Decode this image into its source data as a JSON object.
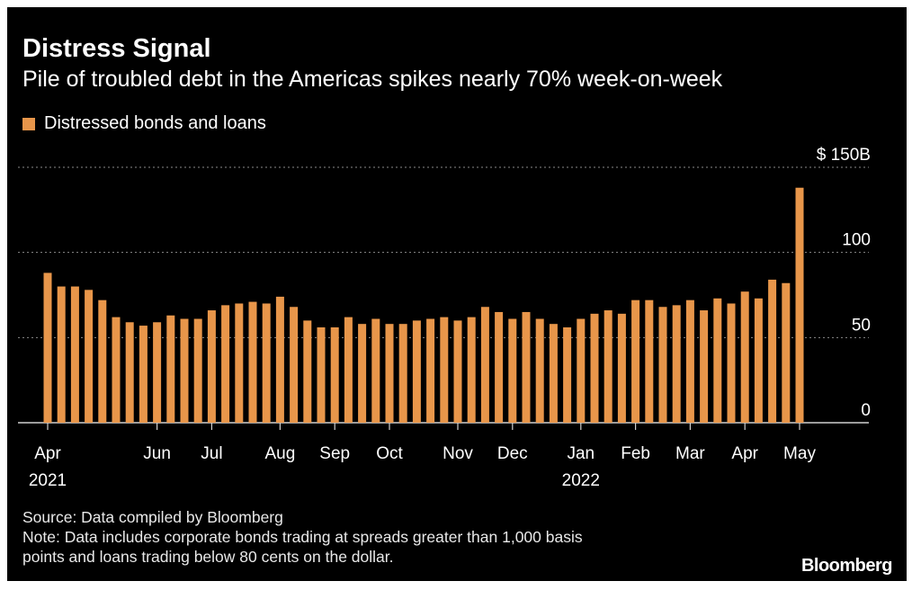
{
  "header": {
    "title": "Distress Signal",
    "subtitle": "Pile of troubled debt in the Americas spikes nearly 70% week-on-week"
  },
  "colors": {
    "background": "#000000",
    "bar": "#E8964A",
    "text": "#ffffff",
    "grid": "#8a8a8a"
  },
  "chart_data": {
    "type": "bar",
    "series": [
      {
        "name": "Distressed bonds and loans",
        "values": [
          88,
          80,
          80,
          78,
          72,
          62,
          59,
          57,
          59,
          63,
          61,
          61,
          66,
          69,
          70,
          71,
          70,
          74,
          68,
          60,
          56,
          56,
          62,
          58,
          61,
          58,
          58,
          60,
          61,
          62,
          60,
          62,
          68,
          65,
          61,
          65,
          61,
          58,
          56,
          61,
          64,
          66,
          64,
          72,
          72,
          68,
          69,
          72,
          66,
          73,
          70,
          77,
          73,
          84,
          82,
          138
        ]
      }
    ],
    "x_labels": [
      {
        "label": "Apr",
        "year": "2021",
        "index": 0
      },
      {
        "label": "Jun",
        "index": 8
      },
      {
        "label": "Jul",
        "index": 12
      },
      {
        "label": "Aug",
        "index": 17
      },
      {
        "label": "Sep",
        "index": 21
      },
      {
        "label": "Oct",
        "index": 25
      },
      {
        "label": "Nov",
        "index": 30
      },
      {
        "label": "Dec",
        "index": 34
      },
      {
        "label": "Jan",
        "year": "2022",
        "index": 39
      },
      {
        "label": "Feb",
        "index": 43
      },
      {
        "label": "Mar",
        "index": 47
      },
      {
        "label": "Apr",
        "index": 51
      },
      {
        "label": "May",
        "index": 55
      }
    ],
    "y_ticks": [
      {
        "value": 0,
        "label": "0"
      },
      {
        "value": 50,
        "label": "50"
      },
      {
        "value": 100,
        "label": "100"
      },
      {
        "value": 150,
        "label": "$ 150B"
      }
    ],
    "ylim": [
      0,
      150
    ],
    "grid": true,
    "grid_style": "dotted",
    "y_axis_side": "right",
    "legend_placement": "top-left"
  },
  "footer": {
    "source": "Source: Data compiled by Bloomberg",
    "note_line1": "Note: Data includes corporate bonds trading at spreads greater than 1,000 basis",
    "note_line2": "points and loans trading below 80 cents on the dollar."
  },
  "brand": "Bloomberg"
}
